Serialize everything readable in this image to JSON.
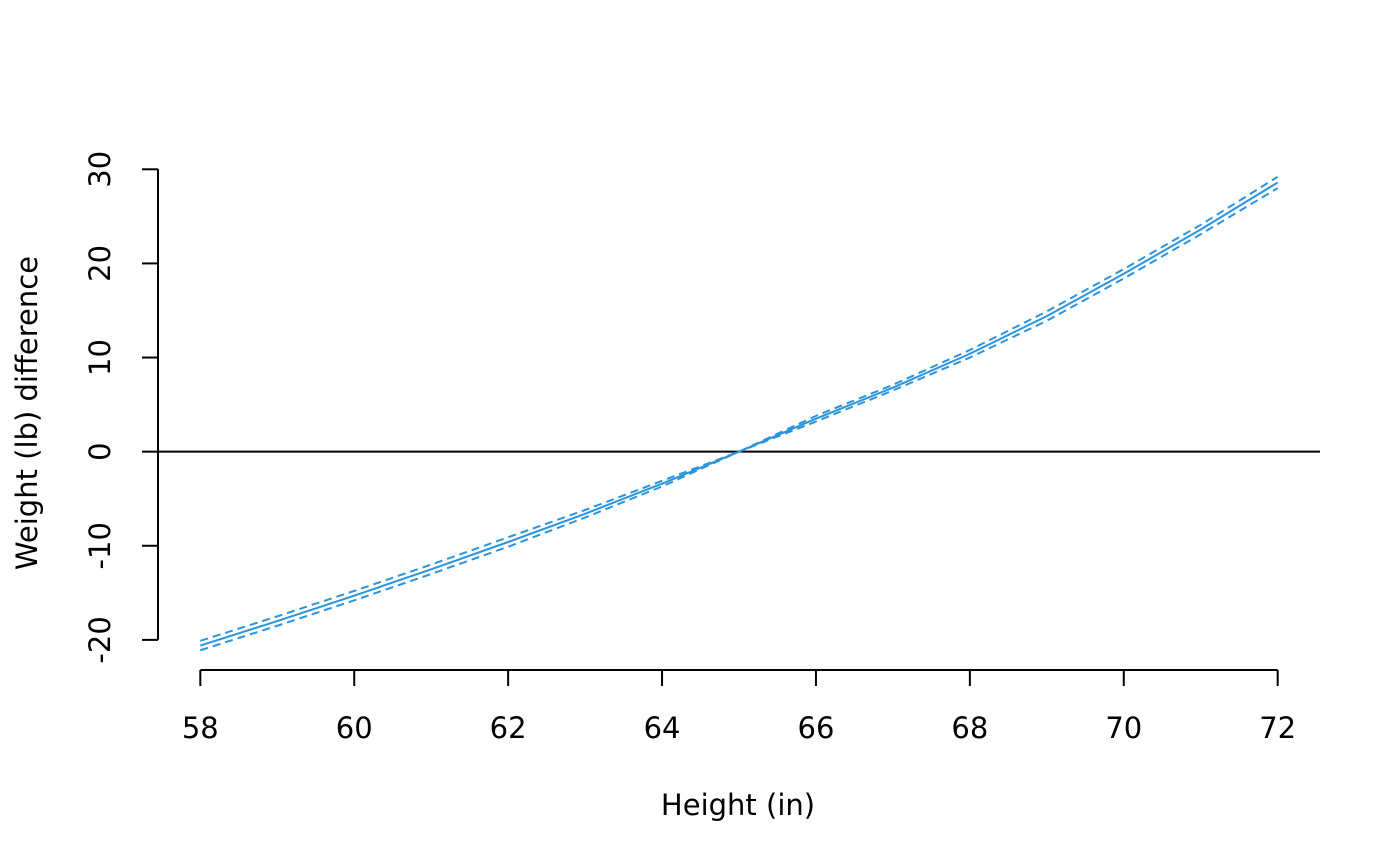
{
  "chart_data": {
    "type": "line",
    "title": "",
    "xlabel": "Height (in)",
    "ylabel": "Weight (lb) difference",
    "xlim": [
      57.45,
      72.55
    ],
    "ylim": [
      -23.2,
      31.2
    ],
    "x_ticks": [
      58,
      60,
      62,
      64,
      66,
      68,
      70,
      72
    ],
    "x_tick_labels": [
      "58",
      "60",
      "62",
      "64",
      "66",
      "68",
      "70",
      "72"
    ],
    "y_ticks": [
      -20,
      -10,
      0,
      10,
      20,
      30
    ],
    "y_tick_labels": [
      "-20",
      "-10",
      "0",
      "10",
      "20",
      "30"
    ],
    "reference_line_y": 0,
    "grid": false,
    "color": "#2b94db",
    "x": [
      58,
      59,
      60,
      61,
      62,
      63,
      64,
      65,
      66,
      67,
      68,
      69,
      70,
      71,
      72
    ],
    "series": [
      {
        "values": [
          -20.6,
          -18.0,
          -15.3,
          -12.5,
          -9.6,
          -6.6,
          -3.4,
          0.0,
          3.5,
          6.8,
          10.4,
          14.4,
          18.9,
          23.6,
          28.6
        ]
      },
      {
        "values": [
          -20.1,
          -17.5,
          -14.8,
          -12.0,
          -9.1,
          -6.2,
          -3.1,
          0.0,
          3.8,
          7.1,
          10.8,
          14.9,
          19.4,
          24.1,
          29.2
        ]
      },
      {
        "values": [
          -21.1,
          -18.5,
          -15.8,
          -13.0,
          -10.1,
          -7.0,
          -3.7,
          0.0,
          3.2,
          6.5,
          10.0,
          13.9,
          18.4,
          23.1,
          28.0
        ]
      }
    ]
  }
}
